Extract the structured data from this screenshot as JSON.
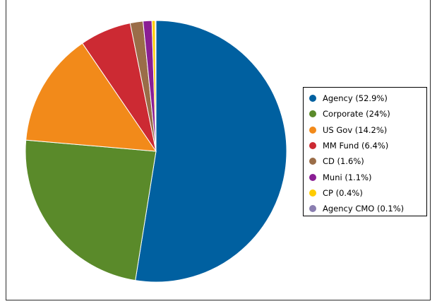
{
  "chart_data": {
    "type": "pie",
    "title": "",
    "slices": [
      {
        "label": "Agency",
        "value": 52.9,
        "legend_text": "Agency (52.9%)",
        "color": "#0060a0"
      },
      {
        "label": "Corporate",
        "value": 24,
        "legend_text": "Corporate (24%)",
        "color": "#5a8a2a"
      },
      {
        "label": "US Gov",
        "value": 14.2,
        "legend_text": "US Gov (14.2%)",
        "color": "#f28a1a"
      },
      {
        "label": "MM Fund",
        "value": 6.4,
        "legend_text": "MM Fund (6.4%)",
        "color": "#cc2a33"
      },
      {
        "label": "CD",
        "value": 1.6,
        "legend_text": "CD (1.6%)",
        "color": "#9a6d48"
      },
      {
        "label": "Muni",
        "value": 1.1,
        "legend_text": "Muni (1.1%)",
        "color": "#8a1e94"
      },
      {
        "label": "CP",
        "value": 0.4,
        "legend_text": "CP (0.4%)",
        "color": "#ffcc00"
      },
      {
        "label": "Agency CMO",
        "value": 0.1,
        "legend_text": "Agency CMO (0.1%)",
        "color": "#8a7eb0"
      }
    ],
    "start_angle": "top",
    "direction": "clockwise",
    "legend_position": "right"
  }
}
